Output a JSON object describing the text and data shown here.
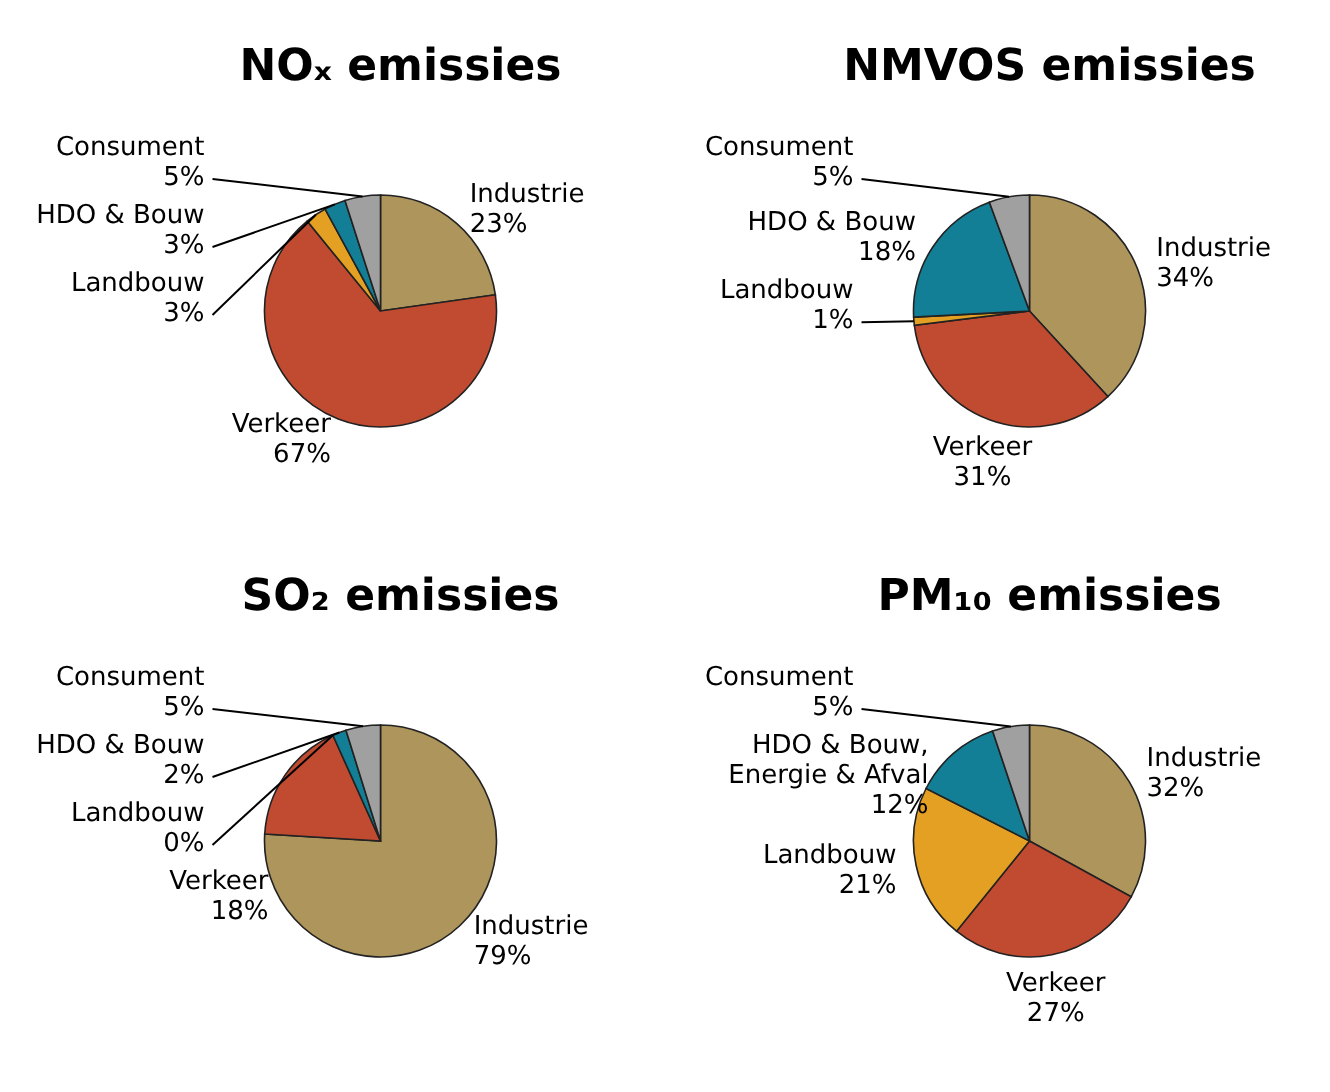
{
  "chart_data": [
    {
      "type": "pie",
      "title": "NOₓ emissies",
      "categories": [
        "Industrie",
        "Verkeer",
        "Landbouw",
        "HDO & Bouw",
        "Consument"
      ],
      "values": [
        23,
        67,
        3,
        3,
        5
      ],
      "value_labels": [
        "23%",
        "67%",
        "3%",
        "3%",
        "5%"
      ],
      "colors": [
        "#ad955c",
        "#c04b31",
        "#e3a023",
        "#137f96",
        "#a0a0a0"
      ],
      "legend": false
    },
    {
      "type": "pie",
      "title": "NMVOS emissies",
      "categories": [
        "Industrie",
        "Verkeer",
        "Landbouw",
        "HDO & Bouw",
        "Consument"
      ],
      "values": [
        34,
        31,
        1,
        18,
        5
      ],
      "value_labels": [
        "34%",
        "31%",
        "1%",
        "18%",
        "5%"
      ],
      "colors": [
        "#ad955c",
        "#c04b31",
        "#e3a023",
        "#137f96",
        "#a0a0a0"
      ],
      "legend": false
    },
    {
      "type": "pie",
      "title": "SO₂ emissies",
      "categories": [
        "Industrie",
        "Verkeer",
        "Landbouw",
        "HDO & Bouw",
        "Consument"
      ],
      "values": [
        79,
        18,
        0,
        2,
        5
      ],
      "value_labels": [
        "79%",
        "18%",
        "0%",
        "2%",
        "5%"
      ],
      "colors": [
        "#ad955c",
        "#c04b31",
        "#e3a023",
        "#137f96",
        "#a0a0a0"
      ],
      "legend": false
    },
    {
      "type": "pie",
      "title": "PM₁₀ emissies",
      "categories": [
        "Industrie",
        "Verkeer",
        "Landbouw",
        "HDO & Bouw, Energie & Afval",
        "Consument"
      ],
      "values": [
        32,
        27,
        21,
        12,
        5
      ],
      "value_labels": [
        "32%",
        "27%",
        "21%",
        "12%",
        "5%"
      ],
      "colors": [
        "#ad955c",
        "#c04b31",
        "#e3a023",
        "#137f96",
        "#a0a0a0"
      ],
      "legend": false
    }
  ]
}
